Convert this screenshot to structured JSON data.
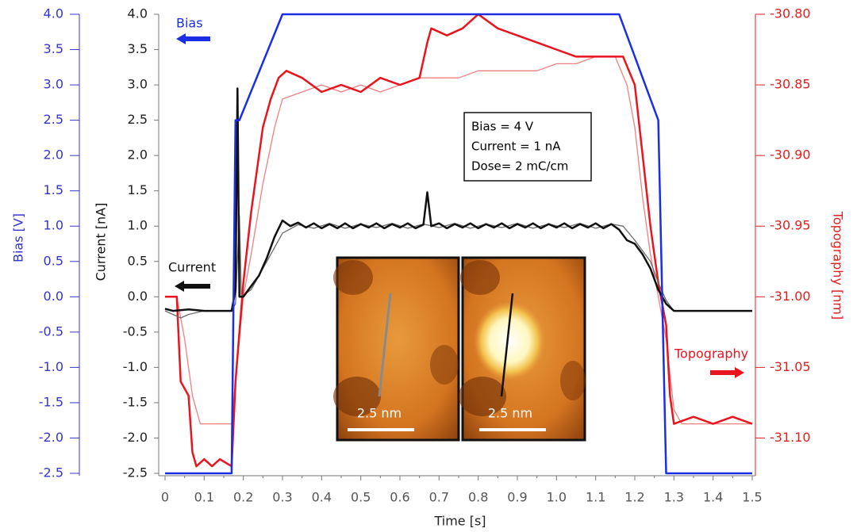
{
  "chart_data": {
    "type": "line",
    "x_label": "Time [s]",
    "y_label": "Current  [nA]",
    "y2_label": "Topography [nm]",
    "y3_label": "Bias [V]",
    "xlim": [
      0,
      1.5
    ],
    "xticks": [
      0,
      0.1,
      0.2,
      0.3,
      0.4,
      0.5,
      0.6,
      0.7,
      0.8,
      0.9,
      {
        "value": 1,
        "label": "1.0"
      },
      1.1,
      1.2,
      1.3,
      1.4,
      1.5
    ],
    "ylim": [
      -2.5,
      4
    ],
    "yticks": [
      -2.5,
      {
        "value": -2,
        "label": "-2.0"
      },
      -1.5,
      {
        "value": -1,
        "label": "-1.0"
      },
      -0.5,
      {
        "value": 0,
        "label": "0.0"
      },
      0.5,
      {
        "value": 1,
        "label": "1.0"
      },
      1.5,
      {
        "value": 2,
        "label": "2.0"
      },
      2.5,
      {
        "value": 3,
        "label": "3.0"
      },
      3.5,
      {
        "value": 4,
        "label": "4.0"
      }
    ],
    "y2lim": [
      -31.125,
      -30.8
    ],
    "y2ticks": [
      {
        "value": -31.1,
        "label": "-31.10"
      },
      -31.05,
      {
        "value": -31,
        "label": "-31.00"
      },
      -30.95,
      {
        "value": -30.9,
        "label": "-30.90"
      },
      -30.85,
      {
        "value": -30.8,
        "label": "-30.80"
      }
    ],
    "y3lim": [
      -2.5,
      4
    ],
    "y3ticks": [
      -2.5,
      {
        "value": -2,
        "label": "-2.0"
      },
      -1.5,
      {
        "value": -1,
        "label": "-1.0"
      },
      -0.5,
      {
        "value": 0,
        "label": "0.0"
      },
      0.5,
      {
        "value": 1,
        "label": "1.0"
      },
      1.5,
      {
        "value": 2,
        "label": "2.0"
      },
      2.5,
      {
        "value": 3,
        "label": "3.0"
      },
      3.5,
      {
        "value": 4,
        "label": "4.0"
      }
    ],
    "series": [
      {
        "color": "#f08080",
        "axis": "y2",
        "x": [
          0,
          0.03,
          0.05,
          0.07,
          0.09,
          0.11,
          0.13,
          0.15,
          0.17,
          0.18,
          0.2,
          0.22,
          0.25,
          0.28,
          0.3,
          0.35,
          0.4,
          0.45,
          0.5,
          0.55,
          0.6,
          0.65,
          0.7,
          0.75,
          0.8,
          0.85,
          0.9,
          0.95,
          1.0,
          1.05,
          1.1,
          1.15,
          1.18,
          1.2,
          1.22,
          1.24,
          1.26,
          1.28,
          1.3,
          1.32,
          1.35,
          1.4,
          1.45,
          1.5
        ],
        "values": [
          -31.0,
          -31.0,
          -31.03,
          -31.07,
          -31.09,
          -31.09,
          -31.09,
          -31.09,
          -31.09,
          -31.06,
          -31.0,
          -30.97,
          -30.92,
          -30.88,
          -30.86,
          -30.855,
          -30.85,
          -30.855,
          -30.85,
          -30.855,
          -30.85,
          -30.845,
          -30.845,
          -30.845,
          -30.84,
          -30.84,
          -30.84,
          -30.84,
          -30.835,
          -30.835,
          -30.83,
          -30.83,
          -30.85,
          -30.88,
          -30.93,
          -30.97,
          -31.0,
          -31.03,
          -31.08,
          -31.09,
          -31.09,
          -31.09,
          -31.09,
          -31.09
        ]
      },
      {
        "name": "Topography",
        "color": "#e8141e",
        "axis": "y2",
        "x": [
          0,
          0.03,
          0.04,
          0.06,
          0.07,
          0.08,
          0.1,
          0.12,
          0.14,
          0.17,
          0.18,
          0.2,
          0.22,
          0.25,
          0.27,
          0.29,
          0.31,
          0.35,
          0.4,
          0.45,
          0.5,
          0.55,
          0.6,
          0.65,
          0.67,
          0.68,
          0.72,
          0.76,
          0.78,
          0.8,
          0.85,
          0.9,
          0.95,
          1.0,
          1.05,
          1.1,
          1.15,
          1.17,
          1.2,
          1.22,
          1.24,
          1.26,
          1.28,
          1.29,
          1.3,
          1.35,
          1.4,
          1.45,
          1.5
        ],
        "values": [
          -31.0,
          -31.0,
          -31.06,
          -31.07,
          -31.11,
          -31.12,
          -31.115,
          -31.12,
          -31.115,
          -31.12,
          -31.06,
          -30.99,
          -30.94,
          -30.88,
          -30.86,
          -30.845,
          -30.84,
          -30.845,
          -30.855,
          -30.85,
          -30.855,
          -30.845,
          -30.85,
          -30.845,
          -30.82,
          -30.81,
          -30.815,
          -30.81,
          -30.805,
          -30.8,
          -30.81,
          -30.815,
          -30.82,
          -30.825,
          -30.83,
          -30.83,
          -30.83,
          -30.83,
          -30.85,
          -30.9,
          -30.95,
          -30.99,
          -31.02,
          -31.07,
          -31.09,
          -31.085,
          -31.09,
          -31.085,
          -31.09
        ]
      },
      {
        "color": "#6b6b6b",
        "x": [
          0,
          0.04,
          0.06,
          0.1,
          0.17,
          0.18,
          0.19,
          0.195,
          0.22,
          0.26,
          0.3,
          0.34,
          0.38,
          0.42,
          0.46,
          0.5,
          0.54,
          0.58,
          0.62,
          0.66,
          0.7,
          0.74,
          0.78,
          0.82,
          0.86,
          0.9,
          0.94,
          0.98,
          1.02,
          1.06,
          1.1,
          1.14,
          1.17,
          1.2,
          1.24,
          1.26,
          1.28,
          1.3,
          1.35,
          1.4,
          1.45,
          1.5
        ],
        "values": [
          -0.2,
          -0.3,
          -0.25,
          -0.2,
          -0.2,
          -0.1,
          1.15,
          0.0,
          0.1,
          0.5,
          0.9,
          1.02,
          0.97,
          1.04,
          0.97,
          1.03,
          0.98,
          1.04,
          0.97,
          1.03,
          0.98,
          1.04,
          0.97,
          1.03,
          0.98,
          1.04,
          0.97,
          1.03,
          0.98,
          1.04,
          0.97,
          1.03,
          1.0,
          0.8,
          0.5,
          0.2,
          -0.05,
          -0.2,
          -0.2,
          -0.2,
          -0.2,
          -0.2
        ]
      },
      {
        "name": "Current",
        "color": "#111111",
        "x": [
          0,
          0.02,
          0.06,
          0.1,
          0.14,
          0.17,
          0.18,
          0.185,
          0.19,
          0.2,
          0.22,
          0.24,
          0.26,
          0.28,
          0.3,
          0.32,
          0.34,
          0.36,
          0.38,
          0.4,
          0.42,
          0.44,
          0.46,
          0.48,
          0.5,
          0.52,
          0.54,
          0.56,
          0.58,
          0.6,
          0.62,
          0.64,
          0.66,
          0.67,
          0.68,
          0.7,
          0.72,
          0.74,
          0.76,
          0.78,
          0.8,
          0.82,
          0.84,
          0.86,
          0.88,
          0.9,
          0.92,
          0.94,
          0.96,
          0.98,
          1.0,
          1.02,
          1.04,
          1.06,
          1.08,
          1.1,
          1.12,
          1.14,
          1.16,
          1.18,
          1.2,
          1.22,
          1.24,
          1.26,
          1.28,
          1.3,
          1.35,
          1.4,
          1.45,
          1.5
        ],
        "values": [
          -0.17,
          -0.2,
          -0.18,
          -0.2,
          -0.2,
          -0.2,
          0.1,
          2.95,
          0.0,
          0.0,
          0.15,
          0.3,
          0.55,
          0.85,
          1.08,
          1.0,
          1.05,
          0.98,
          1.04,
          0.97,
          1.03,
          0.97,
          1.04,
          0.97,
          1.03,
          0.98,
          1.04,
          0.97,
          1.03,
          0.98,
          1.04,
          0.97,
          1.02,
          1.48,
          1.0,
          1.04,
          0.97,
          1.03,
          0.98,
          1.04,
          0.97,
          1.03,
          0.98,
          1.04,
          0.97,
          1.03,
          0.98,
          1.04,
          0.97,
          1.03,
          0.98,
          1.04,
          0.97,
          1.03,
          0.98,
          1.04,
          0.97,
          1.03,
          0.95,
          0.8,
          0.75,
          0.6,
          0.4,
          0.1,
          -0.1,
          -0.2,
          -0.2,
          -0.2,
          -0.2,
          -0.2
        ]
      },
      {
        "name": "Bias",
        "color": "#1a2ee6",
        "axis": "y3",
        "x": [
          0,
          0.17,
          0.18,
          0.19,
          0.3,
          1.16,
          1.26,
          1.28,
          1.5
        ],
        "values": [
          -2.5,
          -2.5,
          2.5,
          2.5,
          4,
          4,
          2.5,
          -2.5,
          -2.5
        ]
      }
    ],
    "annotations": [
      "Bias = 4 V",
      "Current = 1 nA",
      "Dose= 2 mC/cm"
    ],
    "scale_bars": [
      "2.5 nm",
      "2.5 nm"
    ]
  }
}
